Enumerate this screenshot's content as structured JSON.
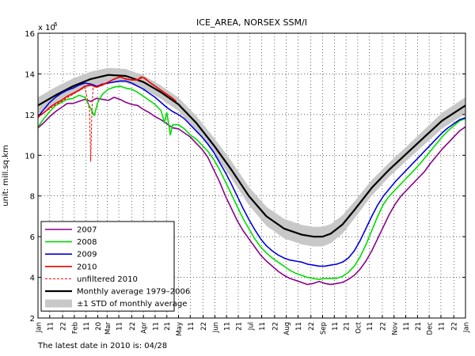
{
  "chart_data": {
    "type": "line",
    "title": "ICE_AREA, NORSEX SSM/I",
    "ylabel": "unit: mill.sq.km",
    "y_multiplier_label": "x 10",
    "y_multiplier_exp": "6",
    "ylim": [
      2,
      16
    ],
    "yticks": [
      2,
      4,
      6,
      8,
      10,
      12,
      14,
      16
    ],
    "xlim": [
      0,
      365
    ],
    "grid": true,
    "legend_position": "bottom-left",
    "x_ticks": [
      {
        "x": 0,
        "label": "Jan"
      },
      {
        "x": 10,
        "label": "11"
      },
      {
        "x": 21,
        "label": "22"
      },
      {
        "x": 31,
        "label": "Feb"
      },
      {
        "x": 41,
        "label": "11"
      },
      {
        "x": 51,
        "label": "20"
      },
      {
        "x": 59,
        "label": "Mar"
      },
      {
        "x": 69,
        "label": "11"
      },
      {
        "x": 80,
        "label": "22"
      },
      {
        "x": 90,
        "label": "Apr"
      },
      {
        "x": 100,
        "label": "11"
      },
      {
        "x": 110,
        "label": "21"
      },
      {
        "x": 120,
        "label": "May"
      },
      {
        "x": 130,
        "label": "11"
      },
      {
        "x": 141,
        "label": "22"
      },
      {
        "x": 151,
        "label": "Jun"
      },
      {
        "x": 161,
        "label": "11"
      },
      {
        "x": 171,
        "label": "21"
      },
      {
        "x": 181,
        "label": "Jul"
      },
      {
        "x": 191,
        "label": "11"
      },
      {
        "x": 202,
        "label": "22"
      },
      {
        "x": 212,
        "label": "Aug"
      },
      {
        "x": 222,
        "label": "11"
      },
      {
        "x": 233,
        "label": "22"
      },
      {
        "x": 243,
        "label": "Sep"
      },
      {
        "x": 253,
        "label": "11"
      },
      {
        "x": 263,
        "label": "21"
      },
      {
        "x": 273,
        "label": "Oct"
      },
      {
        "x": 283,
        "label": "11"
      },
      {
        "x": 294,
        "label": "22"
      },
      {
        "x": 304,
        "label": "Nov"
      },
      {
        "x": 314,
        "label": "11"
      },
      {
        "x": 324,
        "label": "21"
      },
      {
        "x": 334,
        "label": "Dec"
      },
      {
        "x": 344,
        "label": "11"
      },
      {
        "x": 355,
        "label": "22"
      },
      {
        "x": 365,
        "label": "Jan"
      }
    ],
    "series": [
      {
        "name": "Monthly average 1979–2006",
        "color": "#000000",
        "kind": "avg",
        "x": [
          0,
          15,
          30,
          45,
          60,
          75,
          90,
          105,
          120,
          135,
          150,
          165,
          180,
          195,
          210,
          225,
          235,
          243,
          250,
          260,
          270,
          285,
          300,
          315,
          330,
          345,
          365
        ],
        "y": [
          12.45,
          12.95,
          13.4,
          13.75,
          13.95,
          13.9,
          13.6,
          13.1,
          12.5,
          11.6,
          10.5,
          9.3,
          8.0,
          7.0,
          6.4,
          6.1,
          6.0,
          6.0,
          6.15,
          6.6,
          7.3,
          8.4,
          9.3,
          10.1,
          10.9,
          11.7,
          12.45
        ]
      },
      {
        "name": "2007",
        "color": "#8B008B",
        "x": [
          0,
          5,
          10,
          15,
          20,
          25,
          30,
          35,
          40,
          45,
          50,
          55,
          60,
          65,
          70,
          75,
          80,
          85,
          90,
          95,
          100,
          105,
          110,
          115,
          120,
          125,
          130,
          135,
          140,
          145,
          150,
          155,
          160,
          165,
          170,
          175,
          180,
          185,
          190,
          195,
          200,
          205,
          210,
          215,
          220,
          225,
          230,
          235,
          240,
          245,
          250,
          255,
          260,
          265,
          270,
          275,
          280,
          285,
          290,
          295,
          300,
          305,
          310,
          315,
          320,
          325,
          330,
          335,
          340,
          345,
          350,
          355,
          360,
          365
        ],
        "y": [
          11.35,
          11.6,
          11.9,
          12.15,
          12.35,
          12.55,
          12.55,
          12.65,
          12.75,
          12.65,
          12.8,
          12.75,
          12.7,
          12.85,
          12.75,
          12.6,
          12.5,
          12.45,
          12.25,
          12.1,
          11.9,
          11.75,
          11.55,
          11.35,
          11.3,
          11.1,
          10.9,
          10.6,
          10.3,
          9.9,
          9.3,
          8.7,
          8.0,
          7.4,
          6.8,
          6.3,
          5.9,
          5.5,
          5.1,
          4.8,
          4.55,
          4.3,
          4.1,
          3.95,
          3.85,
          3.75,
          3.65,
          3.7,
          3.8,
          3.7,
          3.65,
          3.7,
          3.75,
          3.9,
          4.1,
          4.4,
          4.8,
          5.3,
          5.9,
          6.5,
          7.1,
          7.6,
          8.0,
          8.3,
          8.6,
          8.9,
          9.2,
          9.6,
          9.95,
          10.3,
          10.6,
          10.9,
          11.2,
          11.4
        ]
      },
      {
        "name": "2008",
        "color": "#00DD00",
        "x": [
          0,
          5,
          10,
          15,
          20,
          25,
          30,
          35,
          40,
          45,
          48,
          51,
          55,
          60,
          65,
          70,
          75,
          80,
          85,
          90,
          95,
          100,
          105,
          108,
          110,
          113,
          115,
          120,
          125,
          130,
          135,
          140,
          145,
          150,
          155,
          160,
          165,
          170,
          175,
          180,
          185,
          190,
          195,
          200,
          205,
          210,
          215,
          220,
          225,
          230,
          235,
          240,
          245,
          250,
          255,
          260,
          265,
          270,
          275,
          280,
          285,
          290,
          295,
          300,
          305,
          310,
          315,
          320,
          325,
          330,
          335,
          340,
          345,
          350,
          355,
          360,
          365
        ],
        "y": [
          11.4,
          11.8,
          12.15,
          12.45,
          12.6,
          12.75,
          12.8,
          12.95,
          12.85,
          12.3,
          11.95,
          12.6,
          13.0,
          13.25,
          13.35,
          13.4,
          13.3,
          13.25,
          13.1,
          12.9,
          12.7,
          12.5,
          12.2,
          11.6,
          12.1,
          11.0,
          11.5,
          11.5,
          11.3,
          11.0,
          10.8,
          10.5,
          10.2,
          9.8,
          9.3,
          8.7,
          8.1,
          7.5,
          6.9,
          6.4,
          5.9,
          5.5,
          5.2,
          4.95,
          4.75,
          4.55,
          4.35,
          4.2,
          4.1,
          4.0,
          3.95,
          3.9,
          3.95,
          3.95,
          3.95,
          4.05,
          4.25,
          4.55,
          5.0,
          5.6,
          6.3,
          7.0,
          7.6,
          8.0,
          8.3,
          8.6,
          8.9,
          9.2,
          9.5,
          9.85,
          10.2,
          10.55,
          10.9,
          11.2,
          11.45,
          11.7,
          11.8
        ]
      },
      {
        "name": "2009",
        "color": "#0000DD",
        "x": [
          0,
          5,
          10,
          15,
          20,
          25,
          30,
          35,
          40,
          45,
          50,
          55,
          60,
          65,
          70,
          75,
          80,
          85,
          90,
          95,
          100,
          105,
          110,
          115,
          120,
          125,
          130,
          135,
          140,
          145,
          150,
          155,
          160,
          165,
          170,
          175,
          180,
          185,
          190,
          195,
          200,
          205,
          210,
          215,
          220,
          225,
          230,
          235,
          240,
          245,
          250,
          255,
          260,
          265,
          270,
          275,
          280,
          285,
          290,
          295,
          300,
          305,
          310,
          315,
          320,
          325,
          330,
          335,
          340,
          345,
          350,
          355,
          360,
          365
        ],
        "y": [
          11.9,
          12.25,
          12.6,
          12.85,
          13.05,
          13.2,
          13.3,
          13.45,
          13.55,
          13.5,
          13.4,
          13.5,
          13.55,
          13.6,
          13.65,
          13.65,
          13.55,
          13.4,
          13.25,
          13.05,
          12.85,
          12.6,
          12.35,
          12.15,
          12.0,
          11.8,
          11.5,
          11.2,
          10.9,
          10.55,
          10.15,
          9.65,
          9.15,
          8.6,
          8.0,
          7.4,
          6.85,
          6.35,
          5.9,
          5.55,
          5.3,
          5.1,
          4.95,
          4.85,
          4.8,
          4.75,
          4.65,
          4.6,
          4.55,
          4.55,
          4.6,
          4.65,
          4.75,
          4.95,
          5.3,
          5.8,
          6.4,
          7.0,
          7.55,
          8.0,
          8.35,
          8.7,
          9.0,
          9.3,
          9.6,
          9.9,
          10.2,
          10.5,
          10.8,
          11.1,
          11.35,
          11.55,
          11.75,
          11.85
        ]
      },
      {
        "name": "2010",
        "color": "#EE0000",
        "x": [
          0,
          5,
          10,
          15,
          20,
          25,
          30,
          35,
          40,
          45,
          50,
          55,
          60,
          65,
          70,
          75,
          80,
          85,
          88,
          91,
          95,
          100,
          105,
          110,
          115,
          118
        ],
        "y": [
          11.9,
          12.1,
          12.35,
          12.55,
          12.7,
          12.9,
          13.05,
          13.2,
          13.4,
          13.45,
          13.35,
          13.45,
          13.6,
          13.75,
          13.85,
          13.75,
          13.7,
          13.7,
          13.85,
          13.8,
          13.6,
          13.4,
          13.2,
          13.0,
          12.8,
          12.65
        ]
      },
      {
        "name": "unfiltered 2010",
        "color": "#EE0000",
        "dashed": true,
        "x": [
          0,
          10,
          20,
          30,
          40,
          44,
          45,
          46,
          47,
          50,
          60,
          70,
          80,
          90,
          100,
          110,
          118
        ],
        "y": [
          11.85,
          12.3,
          12.65,
          13.0,
          13.35,
          12.2,
          9.7,
          12.2,
          13.3,
          13.4,
          13.6,
          13.85,
          13.7,
          13.8,
          13.4,
          13.0,
          12.65
        ]
      }
    ],
    "std_band": {
      "name": "±1 STD of monthly average",
      "color": "#C8C8C8",
      "x": [
        0,
        15,
        30,
        45,
        60,
        75,
        90,
        105,
        120,
        135,
        150,
        165,
        180,
        195,
        210,
        225,
        235,
        243,
        250,
        260,
        270,
        285,
        300,
        315,
        330,
        345,
        365
      ],
      "std": [
        0.4,
        0.4,
        0.38,
        0.36,
        0.35,
        0.34,
        0.33,
        0.33,
        0.33,
        0.35,
        0.38,
        0.42,
        0.45,
        0.47,
        0.48,
        0.48,
        0.48,
        0.48,
        0.47,
        0.45,
        0.42,
        0.38,
        0.35,
        0.35,
        0.37,
        0.39,
        0.4
      ]
    }
  },
  "legend": [
    {
      "label": "2007",
      "color": "#8B008B",
      "style": "solid"
    },
    {
      "label": "2008",
      "color": "#00DD00",
      "style": "solid"
    },
    {
      "label": "2009",
      "color": "#0000DD",
      "style": "solid"
    },
    {
      "label": "2010",
      "color": "#EE0000",
      "style": "solid"
    },
    {
      "label": "unfiltered 2010",
      "color": "#EE0000",
      "style": "dashed"
    },
    {
      "label": "Monthly average 1979–2006",
      "color": "#000000",
      "style": "solid"
    },
    {
      "label": "±1 STD of monthly average",
      "color": "#C8C8C8",
      "style": "band"
    }
  ],
  "footer": {
    "latest_date_text": "The latest date in 2010 is: 04/28"
  }
}
